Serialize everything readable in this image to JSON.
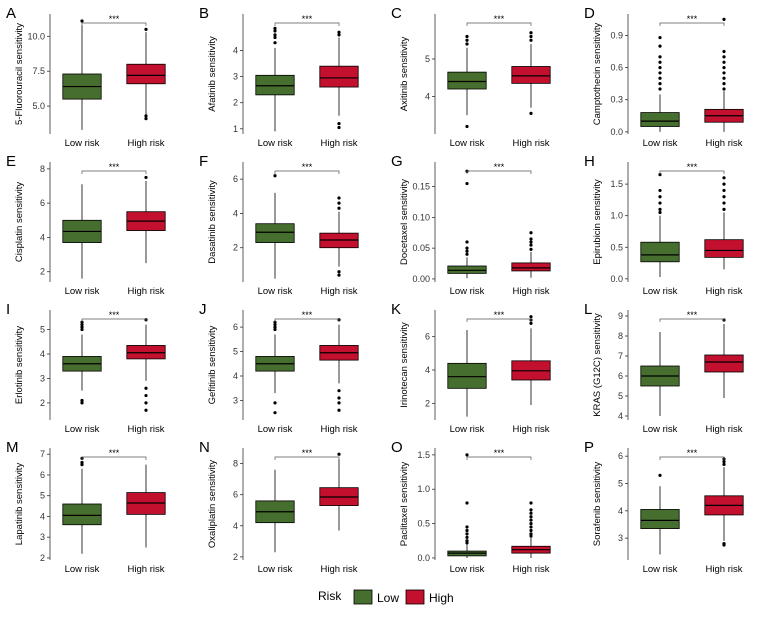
{
  "colors": {
    "low": "#466E2E",
    "high": "#C3102E",
    "axis": "#333333",
    "outlier": "#000000"
  },
  "legend": {
    "title": "Risk",
    "items": [
      {
        "label": "Low",
        "color": "#466E2E"
      },
      {
        "label": "High",
        "color": "#C3102E"
      }
    ]
  },
  "chart_data": [
    {
      "type": "boxplot",
      "letter": "A",
      "ylabel": "5-Fluorouracil sensitivity",
      "categories": [
        "Low risk",
        "High risk"
      ],
      "significance": "***",
      "ylim": [
        3.0,
        11.6
      ],
      "yticks": [
        5.0,
        7.5,
        10.0
      ],
      "tick_labels": [
        "5.0",
        "7.5",
        "10.0"
      ],
      "series": [
        {
          "name": "Low",
          "q1": 5.5,
          "median": 6.4,
          "q3": 7.3,
          "whisker_low": 3.3,
          "whisker_high": 10.8,
          "outliers": [
            11.1
          ]
        },
        {
          "name": "High",
          "q1": 6.6,
          "median": 7.2,
          "q3": 8.0,
          "whisker_low": 4.4,
          "whisker_high": 10.3,
          "outliers": [
            4.3,
            4.1,
            10.5
          ]
        }
      ]
    },
    {
      "type": "boxplot",
      "letter": "B",
      "ylabel": "Afatinib sensitivity",
      "categories": [
        "Low risk",
        "High risk"
      ],
      "significance": "***",
      "ylim": [
        0.8,
        5.4
      ],
      "yticks": [
        1,
        2,
        3,
        4
      ],
      "tick_labels": [
        "1",
        "2",
        "3",
        "4"
      ],
      "series": [
        {
          "name": "Low",
          "q1": 2.3,
          "median": 2.65,
          "q3": 3.05,
          "whisker_low": 0.9,
          "whisker_high": 4.1,
          "outliers": [
            4.3,
            4.5,
            4.6,
            4.75,
            4.85
          ]
        },
        {
          "name": "High",
          "q1": 2.6,
          "median": 2.95,
          "q3": 3.4,
          "whisker_low": 1.5,
          "whisker_high": 4.5,
          "outliers": [
            1.2,
            1.05,
            4.6,
            4.7
          ]
        }
      ]
    },
    {
      "type": "boxplot",
      "letter": "C",
      "ylabel": "Axitinib sensitivity",
      "categories": [
        "Low risk",
        "High risk"
      ],
      "significance": "***",
      "ylim": [
        3.0,
        6.2
      ],
      "yticks": [
        4,
        5
      ],
      "tick_labels": [
        "4",
        "5"
      ],
      "series": [
        {
          "name": "Low",
          "q1": 4.2,
          "median": 4.4,
          "q3": 4.65,
          "whisker_low": 3.5,
          "whisker_high": 5.3,
          "outliers": [
            3.2,
            5.4,
            5.5,
            5.6
          ]
        },
        {
          "name": "High",
          "q1": 4.35,
          "median": 4.55,
          "q3": 4.8,
          "whisker_low": 3.7,
          "whisker_high": 5.4,
          "outliers": [
            3.55,
            5.5,
            5.6,
            5.7
          ]
        }
      ]
    },
    {
      "type": "boxplot",
      "letter": "D",
      "ylabel": "Camptothecin sensitivity",
      "categories": [
        "Low risk",
        "High risk"
      ],
      "significance": "***",
      "ylim": [
        -0.02,
        1.1
      ],
      "yticks": [
        0.0,
        0.3,
        0.6,
        0.9
      ],
      "tick_labels": [
        "0.0",
        "0.3",
        "0.6",
        "0.9"
      ],
      "series": [
        {
          "name": "Low",
          "q1": 0.05,
          "median": 0.1,
          "q3": 0.18,
          "whisker_low": 0.0,
          "whisker_high": 0.35,
          "outliers": [
            0.4,
            0.45,
            0.5,
            0.55,
            0.6,
            0.65,
            0.7,
            0.8,
            0.88
          ]
        },
        {
          "name": "High",
          "q1": 0.09,
          "median": 0.15,
          "q3": 0.21,
          "whisker_low": 0.0,
          "whisker_high": 0.38,
          "outliers": [
            0.4,
            0.45,
            0.5,
            0.55,
            0.6,
            0.65,
            0.7,
            0.75,
            1.05
          ]
        }
      ]
    },
    {
      "type": "boxplot",
      "letter": "E",
      "ylabel": "Cisplatin sensitivity",
      "categories": [
        "Low risk",
        "High risk"
      ],
      "significance": "***",
      "ylim": [
        1.4,
        8.4
      ],
      "yticks": [
        2,
        4,
        6,
        8
      ],
      "tick_labels": [
        "2",
        "4",
        "6",
        "8"
      ],
      "series": [
        {
          "name": "Low",
          "q1": 3.7,
          "median": 4.35,
          "q3": 5.0,
          "whisker_low": 1.6,
          "whisker_high": 7.1,
          "outliers": []
        },
        {
          "name": "High",
          "q1": 4.4,
          "median": 4.95,
          "q3": 5.5,
          "whisker_low": 2.5,
          "whisker_high": 7.3,
          "outliers": [
            7.5
          ]
        }
      ]
    },
    {
      "type": "boxplot",
      "letter": "F",
      "ylabel": "Dasatinib sensitivity",
      "categories": [
        "Low risk",
        "High risk"
      ],
      "significance": "***",
      "ylim": [
        0.0,
        7.0
      ],
      "yticks": [
        2,
        4,
        6
      ],
      "tick_labels": [
        "2",
        "4",
        "6"
      ],
      "series": [
        {
          "name": "Low",
          "q1": 2.3,
          "median": 2.9,
          "q3": 3.4,
          "whisker_low": 0.2,
          "whisker_high": 5.2,
          "outliers": [
            6.2
          ]
        },
        {
          "name": "High",
          "q1": 2.0,
          "median": 2.45,
          "q3": 2.85,
          "whisker_low": 0.9,
          "whisker_high": 4.1,
          "outliers": [
            0.6,
            0.4,
            4.3,
            4.6,
            4.9
          ]
        }
      ]
    },
    {
      "type": "boxplot",
      "letter": "G",
      "ylabel": "Docetaxel sensitivity",
      "categories": [
        "Low risk",
        "High risk"
      ],
      "significance": "***",
      "ylim": [
        -0.005,
        0.19
      ],
      "yticks": [
        0.0,
        0.05,
        0.1,
        0.15
      ],
      "tick_labels": [
        "0.00",
        "0.05",
        "0.10",
        "0.15"
      ],
      "series": [
        {
          "name": "Low",
          "q1": 0.009,
          "median": 0.014,
          "q3": 0.021,
          "whisker_low": 0.001,
          "whisker_high": 0.035,
          "outliers": [
            0.04,
            0.045,
            0.05,
            0.06,
            0.155,
            0.175
          ]
        },
        {
          "name": "High",
          "q1": 0.013,
          "median": 0.018,
          "q3": 0.026,
          "whisker_low": 0.002,
          "whisker_high": 0.044,
          "outliers": [
            0.048,
            0.055,
            0.06,
            0.065,
            0.075
          ]
        }
      ]
    },
    {
      "type": "boxplot",
      "letter": "H",
      "ylabel": "Epirubicin sensitivity",
      "categories": [
        "Low risk",
        "High risk"
      ],
      "significance": "***",
      "ylim": [
        -0.05,
        1.85
      ],
      "yticks": [
        0.0,
        0.5,
        1.0,
        1.5
      ],
      "tick_labels": [
        "0.0",
        "0.5",
        "1.0",
        "1.5"
      ],
      "series": [
        {
          "name": "Low",
          "q1": 0.27,
          "median": 0.38,
          "q3": 0.58,
          "whisker_low": 0.03,
          "whisker_high": 1.0,
          "outliers": [
            1.05,
            1.1,
            1.2,
            1.3,
            1.4,
            1.65
          ]
        },
        {
          "name": "High",
          "q1": 0.34,
          "median": 0.45,
          "q3": 0.62,
          "whisker_low": 0.15,
          "whisker_high": 1.05,
          "outliers": [
            1.1,
            1.2,
            1.3,
            1.4,
            1.5,
            1.6
          ]
        }
      ]
    },
    {
      "type": "boxplot",
      "letter": "I",
      "ylabel": "Erlotinib sensitivity",
      "categories": [
        "Low risk",
        "High risk"
      ],
      "significance": "***",
      "ylim": [
        1.3,
        5.8
      ],
      "yticks": [
        2,
        3,
        4,
        5
      ],
      "tick_labels": [
        "2",
        "3",
        "4",
        "5"
      ],
      "series": [
        {
          "name": "Low",
          "q1": 3.3,
          "median": 3.6,
          "q3": 3.9,
          "whisker_low": 2.5,
          "whisker_high": 4.8,
          "outliers": [
            2.1,
            2.0,
            5.0,
            5.1,
            5.2,
            5.3
          ]
        },
        {
          "name": "High",
          "q1": 3.8,
          "median": 4.05,
          "q3": 4.35,
          "whisker_low": 2.9,
          "whisker_high": 5.2,
          "outliers": [
            2.6,
            2.3,
            2.0,
            1.7,
            5.4
          ]
        }
      ]
    },
    {
      "type": "boxplot",
      "letter": "J",
      "ylabel": "Gefitinib sensitivity",
      "categories": [
        "Low risk",
        "High risk"
      ],
      "significance": "***",
      "ylim": [
        2.2,
        6.7
      ],
      "yticks": [
        3,
        4,
        5,
        6
      ],
      "tick_labels": [
        "3",
        "4",
        "5",
        "6"
      ],
      "series": [
        {
          "name": "Low",
          "q1": 4.2,
          "median": 4.5,
          "q3": 4.8,
          "whisker_low": 3.3,
          "whisker_high": 5.7,
          "outliers": [
            2.9,
            2.5,
            5.9,
            6.0,
            6.1,
            6.2
          ]
        },
        {
          "name": "High",
          "q1": 4.65,
          "median": 4.95,
          "q3": 5.25,
          "whisker_low": 3.7,
          "whisker_high": 6.1,
          "outliers": [
            3.4,
            3.1,
            2.9,
            2.6,
            6.3
          ]
        }
      ]
    },
    {
      "type": "boxplot",
      "letter": "K",
      "ylabel": "Irinotecan sensitivity",
      "categories": [
        "Low risk",
        "High risk"
      ],
      "significance": "***",
      "ylim": [
        1.0,
        7.6
      ],
      "yticks": [
        2,
        4,
        6
      ],
      "tick_labels": [
        "2",
        "4",
        "6"
      ],
      "series": [
        {
          "name": "Low",
          "q1": 2.9,
          "median": 3.6,
          "q3": 4.4,
          "whisker_low": 1.2,
          "whisker_high": 6.4,
          "outliers": []
        },
        {
          "name": "High",
          "q1": 3.4,
          "median": 3.95,
          "q3": 4.55,
          "whisker_low": 1.9,
          "whisker_high": 6.5,
          "outliers": [
            6.8,
            7.0,
            7.2
          ]
        }
      ]
    },
    {
      "type": "boxplot",
      "letter": "L",
      "ylabel": "KRAS (G12C) sensitivity",
      "categories": [
        "Low risk",
        "High risk"
      ],
      "significance": "***",
      "ylim": [
        3.8,
        9.3
      ],
      "yticks": [
        4,
        5,
        6,
        7,
        8,
        9
      ],
      "tick_labels": [
        "4",
        "5",
        "6",
        "7",
        "8",
        "9"
      ],
      "series": [
        {
          "name": "Low",
          "q1": 5.5,
          "median": 6.0,
          "q3": 6.5,
          "whisker_low": 4.0,
          "whisker_high": 8.2,
          "outliers": []
        },
        {
          "name": "High",
          "q1": 6.2,
          "median": 6.7,
          "q3": 7.05,
          "whisker_low": 4.9,
          "whisker_high": 8.6,
          "outliers": [
            8.8
          ]
        }
      ]
    },
    {
      "type": "boxplot",
      "letter": "M",
      "ylabel": "Lapatinib sensitivity",
      "categories": [
        "Low risk",
        "High risk"
      ],
      "significance": "***",
      "ylim": [
        1.9,
        7.3
      ],
      "yticks": [
        2,
        3,
        4,
        5,
        6,
        7
      ],
      "tick_labels": [
        "2",
        "3",
        "4",
        "5",
        "6",
        "7"
      ],
      "series": [
        {
          "name": "Low",
          "q1": 3.6,
          "median": 4.05,
          "q3": 4.6,
          "whisker_low": 2.2,
          "whisker_high": 6.3,
          "outliers": [
            6.5,
            6.6,
            6.8
          ]
        },
        {
          "name": "High",
          "q1": 4.1,
          "median": 4.65,
          "q3": 5.15,
          "whisker_low": 2.5,
          "whisker_high": 6.5,
          "outliers": []
        }
      ]
    },
    {
      "type": "boxplot",
      "letter": "N",
      "ylabel": "Oxaliplatin sensitivity",
      "categories": [
        "Low risk",
        "High risk"
      ],
      "significance": "***",
      "ylim": [
        1.8,
        9.0
      ],
      "yticks": [
        2,
        4,
        6,
        8
      ],
      "tick_labels": [
        "2",
        "4",
        "6",
        "8"
      ],
      "series": [
        {
          "name": "Low",
          "q1": 4.2,
          "median": 4.9,
          "q3": 5.6,
          "whisker_low": 2.3,
          "whisker_high": 7.6,
          "outliers": []
        },
        {
          "name": "High",
          "q1": 5.3,
          "median": 5.85,
          "q3": 6.45,
          "whisker_low": 3.7,
          "whisker_high": 8.3,
          "outliers": [
            8.6
          ]
        }
      ]
    },
    {
      "type": "boxplot",
      "letter": "O",
      "ylabel": "Paclitaxel sensitivity",
      "categories": [
        "Low risk",
        "High risk"
      ],
      "significance": "***",
      "ylim": [
        -0.03,
        1.6
      ],
      "yticks": [
        0.0,
        0.5,
        1.0,
        1.5
      ],
      "tick_labels": [
        "0.0",
        "0.5",
        "1.0",
        "1.5"
      ],
      "series": [
        {
          "name": "Low",
          "q1": 0.03,
          "median": 0.07,
          "q3": 0.1,
          "whisker_low": 0.0,
          "whisker_high": 0.2,
          "outliers": [
            0.22,
            0.25,
            0.3,
            0.35,
            0.4,
            0.45,
            0.8,
            1.5
          ]
        },
        {
          "name": "High",
          "q1": 0.07,
          "median": 0.12,
          "q3": 0.17,
          "whisker_low": 0.0,
          "whisker_high": 0.3,
          "outliers": [
            0.32,
            0.35,
            0.4,
            0.45,
            0.5,
            0.55,
            0.6,
            0.65,
            0.7,
            0.8
          ]
        }
      ]
    },
    {
      "type": "boxplot",
      "letter": "P",
      "ylabel": "Sorafenib sensitivity",
      "categories": [
        "Low risk",
        "High risk"
      ],
      "significance": "***",
      "ylim": [
        2.2,
        6.3
      ],
      "yticks": [
        3,
        4,
        5,
        6
      ],
      "tick_labels": [
        "3",
        "4",
        "5",
        "6"
      ],
      "series": [
        {
          "name": "Low",
          "q1": 3.35,
          "median": 3.65,
          "q3": 4.05,
          "whisker_low": 2.4,
          "whisker_high": 4.9,
          "outliers": [
            5.3
          ]
        },
        {
          "name": "High",
          "q1": 3.85,
          "median": 4.2,
          "q3": 4.55,
          "whisker_low": 2.9,
          "whisker_high": 5.6,
          "outliers": [
            2.8,
            2.75,
            5.7,
            5.8,
            5.9
          ]
        }
      ]
    }
  ]
}
